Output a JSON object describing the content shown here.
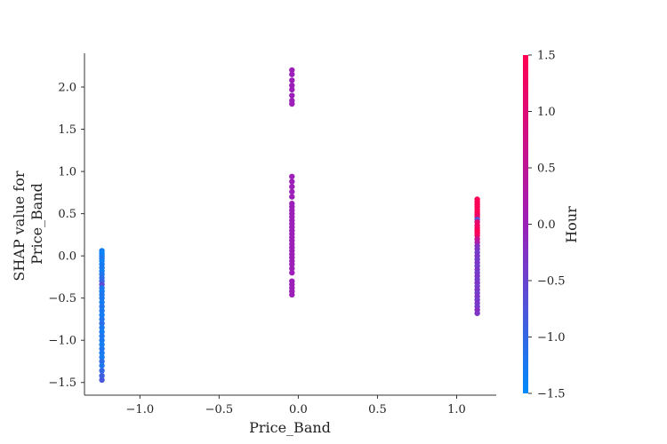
{
  "chart_data": {
    "type": "scatter",
    "title": "",
    "xlabel": "Price_Band",
    "ylabel": [
      "SHAP value for",
      "Price_Band"
    ],
    "xlim": [
      -1.35,
      1.25
    ],
    "ylim": [
      -1.65,
      2.4
    ],
    "xticks": [
      -1.0,
      -0.5,
      0.0,
      0.5,
      1.0
    ],
    "yticks": [
      -1.5,
      -1.0,
      -0.5,
      0.0,
      0.5,
      1.0,
      1.5,
      2.0
    ],
    "xtick_labels": [
      "−1.0",
      "−0.5",
      "0.0",
      "0.5",
      "1.0"
    ],
    "ytick_labels": [
      "−1.5",
      "−1.0",
      "−0.5",
      "0.0",
      "0.5",
      "1.0",
      "1.5",
      "2.0"
    ],
    "grid": false,
    "colorbar": {
      "label": "Hour",
      "range": [
        -1.5,
        1.5
      ],
      "ticks": [
        -1.5,
        -1.0,
        -0.5,
        0.0,
        0.5,
        1.0,
        1.5
      ],
      "tick_labels": [
        "−1.5",
        "−1.0",
        "−0.5",
        "0.0",
        "0.5",
        "1.0",
        "1.5"
      ],
      "colors": {
        "low": "#008bfb",
        "mid": "#9c20b8",
        "high": "#ff0052"
      }
    },
    "clusters": [
      {
        "x": -1.24,
        "points": [
          {
            "y": 0.06,
            "c": -1.3
          },
          {
            "y": 0.03,
            "c": -1.4
          },
          {
            "y": 0.0,
            "c": -1.3
          },
          {
            "y": -0.03,
            "c": -1.2
          },
          {
            "y": -0.06,
            "c": -1.35
          },
          {
            "y": -0.1,
            "c": -1.3
          },
          {
            "y": -0.14,
            "c": -1.25
          },
          {
            "y": -0.18,
            "c": -1.3
          },
          {
            "y": -0.22,
            "c": -1.2
          },
          {
            "y": -0.26,
            "c": -1.1
          },
          {
            "y": -0.3,
            "c": -1.0
          },
          {
            "y": -0.34,
            "c": -0.6
          },
          {
            "y": -0.38,
            "c": -1.2
          },
          {
            "y": -0.42,
            "c": -1.3
          },
          {
            "y": -0.46,
            "c": -1.2
          },
          {
            "y": -0.5,
            "c": -1.25
          },
          {
            "y": -0.55,
            "c": -1.3
          },
          {
            "y": -0.6,
            "c": -1.2
          },
          {
            "y": -0.65,
            "c": -1.25
          },
          {
            "y": -0.7,
            "c": -1.3
          },
          {
            "y": -0.75,
            "c": -1.2
          },
          {
            "y": -0.8,
            "c": -1.1
          },
          {
            "y": -0.85,
            "c": -1.25
          },
          {
            "y": -0.9,
            "c": -1.3
          },
          {
            "y": -0.95,
            "c": -1.2
          },
          {
            "y": -1.0,
            "c": -1.25
          },
          {
            "y": -1.05,
            "c": -1.3
          },
          {
            "y": -1.1,
            "c": -1.2
          },
          {
            "y": -1.15,
            "c": -1.25
          },
          {
            "y": -1.2,
            "c": -1.3
          },
          {
            "y": -1.25,
            "c": -1.1
          },
          {
            "y": -1.3,
            "c": -1.2
          },
          {
            "y": -1.36,
            "c": -1.0
          },
          {
            "y": -1.42,
            "c": -0.9
          },
          {
            "y": -1.47,
            "c": -0.8
          }
        ]
      },
      {
        "x": -0.04,
        "points": [
          {
            "y": 2.2,
            "c": 0.0
          },
          {
            "y": 2.15,
            "c": 0.0
          },
          {
            "y": 2.08,
            "c": 0.0
          },
          {
            "y": 2.02,
            "c": 0.0
          },
          {
            "y": 1.97,
            "c": 0.0
          },
          {
            "y": 1.9,
            "c": 0.0
          },
          {
            "y": 1.84,
            "c": 0.0
          },
          {
            "y": 1.8,
            "c": 0.0
          },
          {
            "y": 0.94,
            "c": 0.0
          },
          {
            "y": 0.88,
            "c": 0.0
          },
          {
            "y": 0.82,
            "c": 0.0
          },
          {
            "y": 0.76,
            "c": 0.0
          },
          {
            "y": 0.7,
            "c": 0.0
          },
          {
            "y": 0.62,
            "c": 0.0
          },
          {
            "y": 0.58,
            "c": 0.0
          },
          {
            "y": 0.54,
            "c": 0.0
          },
          {
            "y": 0.5,
            "c": 0.0
          },
          {
            "y": 0.46,
            "c": 0.0
          },
          {
            "y": 0.42,
            "c": 0.0
          },
          {
            "y": 0.38,
            "c": 0.0
          },
          {
            "y": 0.34,
            "c": 0.0
          },
          {
            "y": 0.3,
            "c": 0.0
          },
          {
            "y": 0.26,
            "c": 0.0
          },
          {
            "y": 0.22,
            "c": 0.0
          },
          {
            "y": 0.18,
            "c": 0.0
          },
          {
            "y": 0.14,
            "c": 0.0
          },
          {
            "y": 0.1,
            "c": 0.0
          },
          {
            "y": 0.06,
            "c": 0.0
          },
          {
            "y": 0.02,
            "c": 0.0
          },
          {
            "y": -0.02,
            "c": 0.0
          },
          {
            "y": -0.06,
            "c": 0.0
          },
          {
            "y": -0.1,
            "c": 0.0
          },
          {
            "y": -0.15,
            "c": 0.0
          },
          {
            "y": -0.2,
            "c": 0.0
          },
          {
            "y": -0.3,
            "c": 0.0
          },
          {
            "y": -0.34,
            "c": 0.0
          },
          {
            "y": -0.38,
            "c": 0.0
          },
          {
            "y": -0.42,
            "c": 0.0
          },
          {
            "y": -0.46,
            "c": 0.0
          }
        ]
      },
      {
        "x": 1.13,
        "points": [
          {
            "y": 0.67,
            "c": 1.5
          },
          {
            "y": 0.64,
            "c": 1.5
          },
          {
            "y": 0.61,
            "c": 1.4
          },
          {
            "y": 0.58,
            "c": 1.5
          },
          {
            "y": 0.55,
            "c": 1.4
          },
          {
            "y": 0.52,
            "c": 1.5
          },
          {
            "y": 0.49,
            "c": 1.3
          },
          {
            "y": 0.46,
            "c": 1.2
          },
          {
            "y": 0.43,
            "c": -0.7
          },
          {
            "y": 0.4,
            "c": 1.1
          },
          {
            "y": 0.36,
            "c": 1.2
          },
          {
            "y": 0.33,
            "c": 1.3
          },
          {
            "y": 0.3,
            "c": 1.4
          },
          {
            "y": 0.27,
            "c": 1.5
          },
          {
            "y": 0.24,
            "c": 1.3
          },
          {
            "y": 0.2,
            "c": 0.6
          },
          {
            "y": 0.16,
            "c": 0.3
          },
          {
            "y": 0.12,
            "c": -0.2
          },
          {
            "y": 0.08,
            "c": -0.3
          },
          {
            "y": 0.04,
            "c": -0.4
          },
          {
            "y": 0.0,
            "c": -0.3
          },
          {
            "y": -0.04,
            "c": -0.4
          },
          {
            "y": -0.08,
            "c": -0.3
          },
          {
            "y": -0.12,
            "c": -0.4
          },
          {
            "y": -0.16,
            "c": -0.3
          },
          {
            "y": -0.2,
            "c": -0.4
          },
          {
            "y": -0.24,
            "c": -0.3
          },
          {
            "y": -0.28,
            "c": -0.4
          },
          {
            "y": -0.32,
            "c": -0.3
          },
          {
            "y": -0.36,
            "c": -0.4
          },
          {
            "y": -0.4,
            "c": -0.3
          },
          {
            "y": -0.44,
            "c": -0.4
          },
          {
            "y": -0.48,
            "c": -0.3
          },
          {
            "y": -0.52,
            "c": -0.4
          },
          {
            "y": -0.56,
            "c": -0.3
          },
          {
            "y": -0.6,
            "c": -0.4
          },
          {
            "y": -0.64,
            "c": -0.2
          },
          {
            "y": -0.68,
            "c": -0.3
          }
        ]
      }
    ]
  }
}
